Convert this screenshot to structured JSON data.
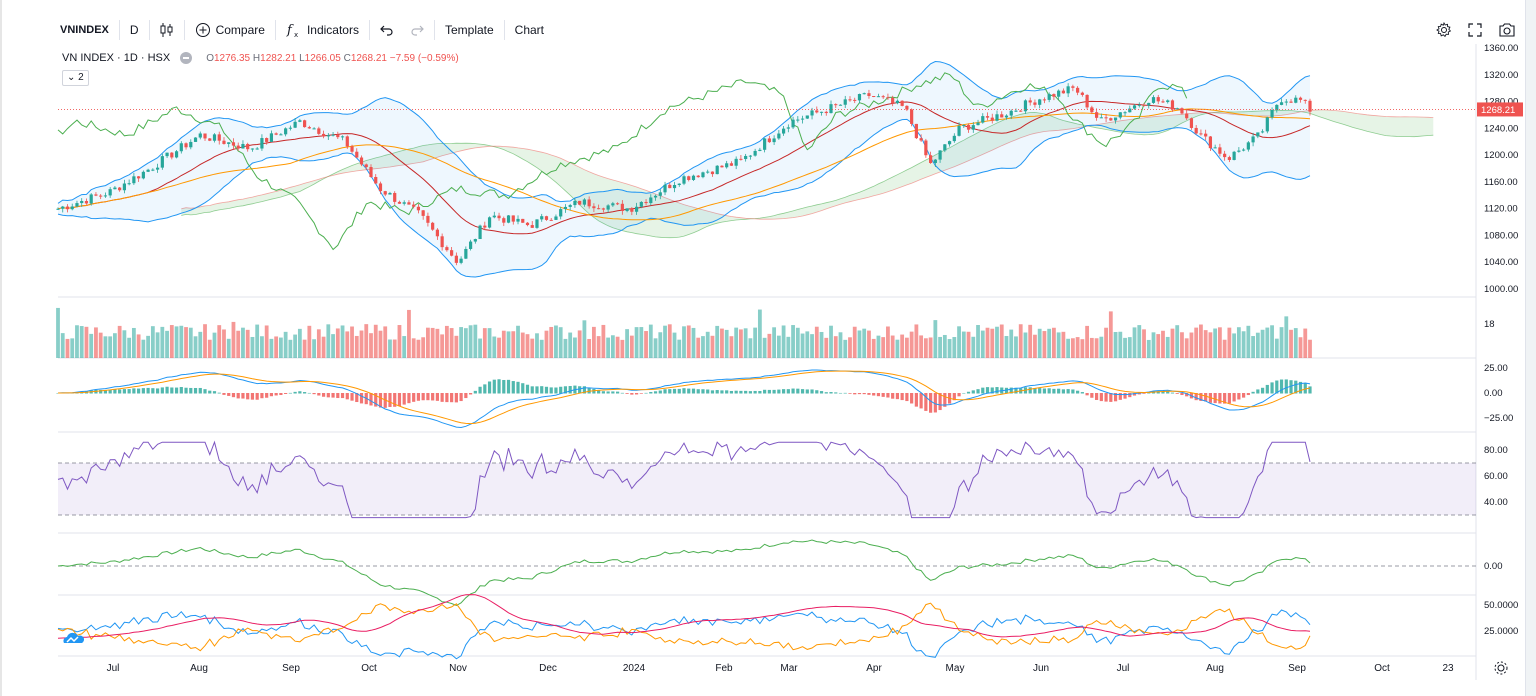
{
  "toolbar": {
    "symbol": "VNINDEX",
    "interval": "D",
    "compare_label": "Compare",
    "indicators_label": "Indicators",
    "template_label": "Template",
    "chart_label": "Chart"
  },
  "legend": {
    "title": "VN INDEX · 1D · HSX",
    "open_label": "O",
    "open": "1276.35",
    "high_label": "H",
    "high": "1282.21",
    "low_label": "L",
    "low": "1266.05",
    "close_label": "C",
    "close": "1268.21",
    "change": "−7.59 (−0.59%)",
    "indicators_toggle": "2"
  },
  "price_axis": {
    "ticks": [
      "1360.00",
      "1320.00",
      "1280.00",
      "1240.00",
      "1200.00",
      "1160.00",
      "1120.00",
      "1080.00",
      "1040.00",
      "1000.00"
    ],
    "current_price": "1268.21"
  },
  "volume_axis": {
    "ticks": [
      "18"
    ]
  },
  "macd_axis": {
    "ticks": [
      "25.00",
      "0.00",
      "−25.00"
    ]
  },
  "rsi_axis": {
    "ticks": [
      "80.00",
      "60.00",
      "40.00"
    ]
  },
  "osc_axis": {
    "ticks": [
      "0.00"
    ]
  },
  "dmi_axis": {
    "ticks": [
      "50.0000",
      "25.0000"
    ]
  },
  "time_axis": {
    "labels": [
      "Jul",
      "Aug",
      "Sep",
      "Oct",
      "Nov",
      "Dec",
      "2024",
      "Feb",
      "Mar",
      "Apr",
      "May",
      "Jun",
      "Jul",
      "Aug",
      "Sep",
      "Oct",
      "23"
    ]
  },
  "colors": {
    "up": "#26a69a",
    "down": "#ef5350",
    "bb": "#2196f3",
    "rsi": "#7e57c2",
    "signal": "#ff9800",
    "ichimoku": "#4caf50",
    "dmi_minus": "#e91e63"
  }
}
